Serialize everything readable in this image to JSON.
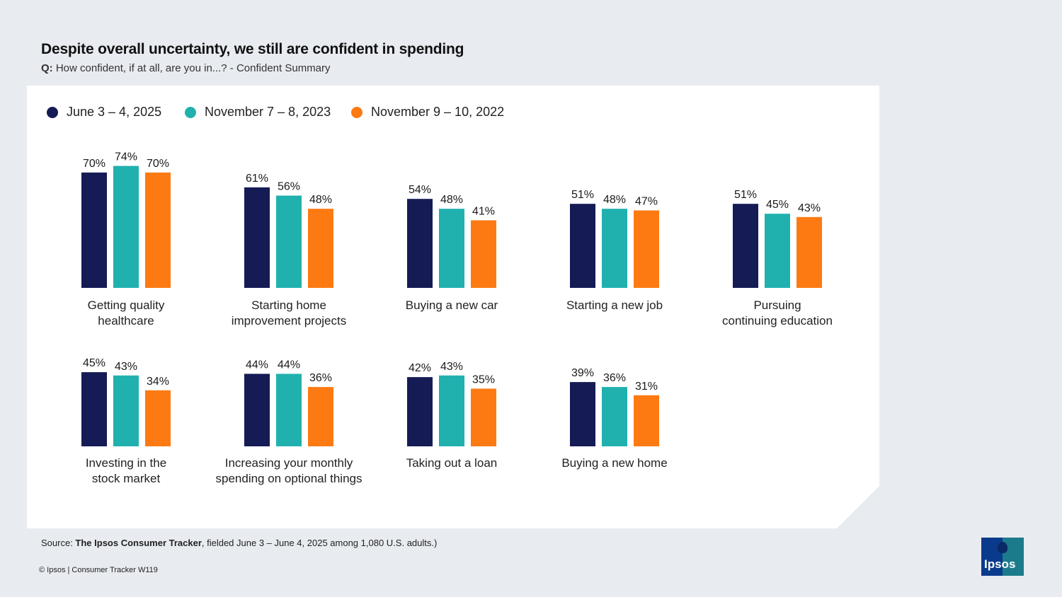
{
  "title": "Despite overall uncertainty, we still are confident in spending",
  "question_prefix": "Q:",
  "question_text": "How confident, if at all, are you in...? - Confident Summary",
  "legend": [
    {
      "label": "June 3 – 4, 2025",
      "color": "#141b55"
    },
    {
      "label": "November 7 – 8, 2023",
      "color": "#20b1af"
    },
    {
      "label": "November 9 – 10, 2022",
      "color": "#fd7a12"
    }
  ],
  "chart_data": {
    "type": "bar",
    "categories": [
      "Getting quality healthcare",
      "Starting home improvement projects",
      "Buying a new car",
      "Starting a new job",
      "Pursuing continuing education",
      "Investing in the stock market",
      "Increasing your monthly spending on optional things",
      "Taking out a loan",
      "Buying a new home"
    ],
    "category_lines": [
      [
        "Getting quality",
        "healthcare"
      ],
      [
        "Starting home",
        "improvement projects"
      ],
      [
        "Buying a new car"
      ],
      [
        "Starting a new job"
      ],
      [
        "Pursuing",
        "continuing education"
      ],
      [
        "Investing in the",
        "stock market"
      ],
      [
        "Increasing your monthly",
        "spending on optional things"
      ],
      [
        "Taking out a loan"
      ],
      [
        "Buying a new home"
      ]
    ],
    "series": [
      {
        "name": "June 3 – 4, 2025",
        "values": [
          70,
          61,
          54,
          51,
          51,
          45,
          44,
          42,
          39
        ]
      },
      {
        "name": "November 7 – 8, 2023",
        "values": [
          74,
          56,
          48,
          48,
          45,
          43,
          44,
          43,
          36
        ]
      },
      {
        "name": "November 9 – 10, 2022",
        "values": [
          70,
          48,
          41,
          47,
          43,
          34,
          36,
          35,
          31
        ]
      }
    ],
    "value_suffix": "%",
    "layout": "small multiples, 5 panels top row and 4 panels bottom row",
    "legend_position": "top-left",
    "grid": false
  },
  "source_prefix": "Source: ",
  "source_bold": "The Ipsos Consumer Tracker",
  "source_rest": ", fielded June 3 – June 4, 2025 among 1,080 U.S. adults.)",
  "copyright": "© Ipsos | Consumer Tracker W119",
  "logo_text": "Ipsos"
}
